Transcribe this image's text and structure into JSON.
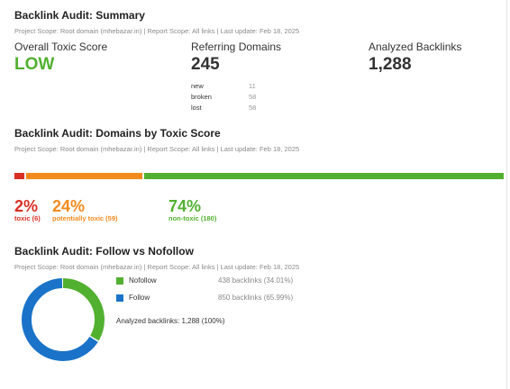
{
  "summary": {
    "title": "Backlink Audit: Summary",
    "scope": "Project Scope: Root domain (mhebazar.in) | Report Scope: All links | Last update: Feb 18, 2025",
    "overall_label": "Overall Toxic Score",
    "overall_value": "LOW",
    "referring_label": "Referring Domains",
    "referring_value": "245",
    "analyzed_label": "Analyzed Backlinks",
    "analyzed_value": "1,288",
    "domain_stats": [
      {
        "label": "new",
        "value": "11"
      },
      {
        "label": "broken",
        "value": "58"
      },
      {
        "label": "lost",
        "value": "58"
      }
    ]
  },
  "toxic_score": {
    "title": "Backlink Audit: Domains by Toxic Score",
    "scope": "Project Scope: Root domain (mhebazar.in) | Report Scope: All links | Last update: Feb 18, 2025",
    "segments": [
      {
        "percent": "2%",
        "label": "toxic (6)",
        "share": 2,
        "color": "#d93025"
      },
      {
        "percent": "24%",
        "label": "potentially toxic (59)",
        "share": 24,
        "color": "#f28b1e"
      },
      {
        "percent": "74%",
        "label": "non-toxic (180)",
        "share": 74,
        "color": "#52b030"
      }
    ]
  },
  "follow": {
    "title": "Backlink Audit: Follow vs Nofollow",
    "scope": "Project Scope: Root domain (mhebazar.in) | Report Scope: All links | Last update: Feb 18, 2025",
    "items": [
      {
        "label": "Nofollow",
        "value": "438 backlinks (34.01%)",
        "share": 34.01,
        "color": "#52b030"
      },
      {
        "label": "Follow",
        "value": "850 backlinks (65.99%)",
        "share": 65.99,
        "color": "#1a73c8"
      }
    ],
    "total": "Analyzed backlinks: 1,288 (100%)"
  }
}
